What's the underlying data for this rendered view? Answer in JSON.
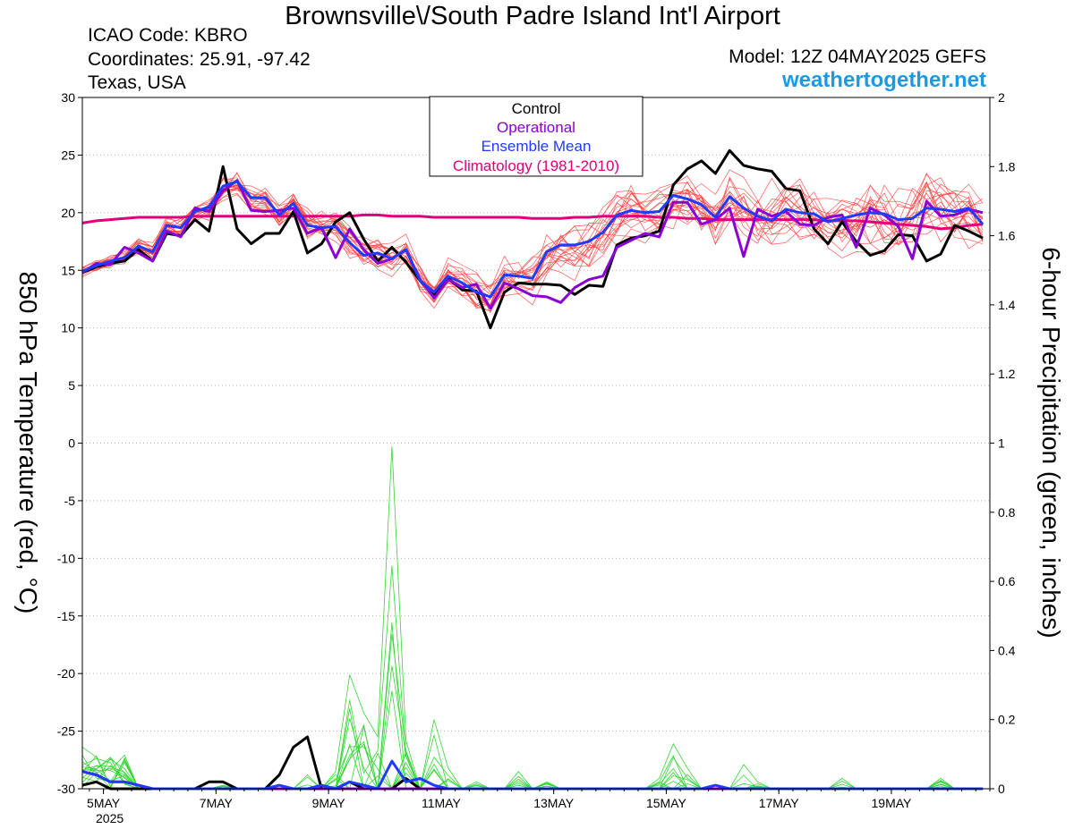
{
  "header": {
    "title": "Brownsville\\/South Padre Island Int'l Airport",
    "icao": "ICAO Code: KBRO",
    "coordinates": "Coordinates: 25.91, -97.42",
    "region": "Texas, USA",
    "model": "Model: 12Z 04MAY2025 GEFS",
    "website": "weathertogether.net"
  },
  "chart_data": {
    "type": "line",
    "xlabel": "",
    "ylabel": "850 hPa Temperature (red, °C)",
    "y2label": "6-hour Precipitation (green, inches)",
    "x_ticks": [
      "5MAY",
      "7MAY",
      "9MAY",
      "11MAY",
      "13MAY",
      "15MAY",
      "17MAY",
      "19MAY"
    ],
    "x_tick_year": "2025",
    "x_ticks_day": [
      5,
      7,
      9,
      11,
      13,
      15,
      17,
      19
    ],
    "xlim_day": [
      4.625,
      20.75
    ],
    "x_step_days": 0.25,
    "ylim": [
      -30,
      30
    ],
    "y_ticks": [
      -30,
      -25,
      -20,
      -15,
      -10,
      -5,
      0,
      5,
      10,
      15,
      20,
      25,
      30
    ],
    "y2lim": [
      0,
      2
    ],
    "y2_ticks": [
      "0",
      "0.2",
      "0.4",
      "0.6",
      "0.8",
      "1",
      "1.2",
      "1.4",
      "1.6",
      "1.8",
      "2"
    ],
    "grid": "dotted",
    "legend": {
      "position": "top-center",
      "entries": [
        {
          "label": "Control",
          "color": "#000000"
        },
        {
          "label": "Operational",
          "color": "#8a00d4"
        },
        {
          "label": "Ensemble Mean",
          "color": "#1f3bff"
        },
        {
          "label": "Climatology (1981-2010)",
          "color": "#e0007a"
        }
      ]
    },
    "colors": {
      "members": "#ff3b3b",
      "precip_members": "#35d535",
      "control": "#000000",
      "operational": "#8a00d4",
      "mean": "#1f3bff",
      "climatology": "#e0007a",
      "website": "#1a9ae6"
    },
    "series": [
      {
        "name": "Control",
        "axis": "left",
        "color": "#000000",
        "width": 3,
        "values": [
          14.8,
          15.3,
          15.6,
          15.8,
          16.8,
          15.8,
          18.2,
          18.0,
          19.4,
          18.4,
          24.0,
          18.6,
          17.3,
          18.2,
          18.2,
          20.1,
          16.5,
          17.3,
          19.2,
          20.0,
          17.7,
          15.8,
          17.0,
          15.7,
          14.1,
          12.8,
          14.3,
          13.3,
          13.2,
          10.0,
          13.1,
          13.9,
          13.8,
          13.8,
          13.7,
          12.9,
          13.7,
          13.6,
          17.2,
          17.8,
          18.0,
          18.4,
          22.4,
          23.8,
          24.5,
          23.4,
          25.4,
          24.1,
          23.8,
          23.6,
          22.1,
          21.9,
          18.6,
          17.3,
          19.2,
          17.5,
          16.3,
          16.7,
          18.1,
          18.0,
          15.8,
          16.4,
          18.9,
          18.4,
          17.8
        ]
      },
      {
        "name": "Operational",
        "axis": "left",
        "color": "#8a00d4",
        "width": 3,
        "values": [
          14.8,
          15.6,
          15.5,
          17.0,
          16.5,
          15.8,
          18.4,
          17.9,
          20.4,
          20.1,
          21.9,
          22.8,
          20.2,
          20.1,
          20.2,
          20.4,
          18.2,
          18.7,
          16.1,
          18.6,
          16.8,
          15.6,
          16.0,
          16.8,
          14.2,
          12.6,
          14.2,
          13.5,
          13.8,
          11.7,
          13.9,
          13.4,
          12.8,
          12.7,
          12.2,
          13.5,
          14.2,
          14.5,
          17.0,
          17.6,
          18.2,
          17.9,
          20.9,
          20.9,
          19.0,
          19.4,
          20.4,
          16.2,
          20.3,
          19.7,
          20.1,
          19.0,
          18.9,
          19.6,
          19.8,
          17.0,
          20.4,
          19.8,
          18.8,
          16.0,
          21.0,
          19.7,
          19.8,
          20.3,
          20.0
        ]
      },
      {
        "name": "Ensemble Mean",
        "axis": "left",
        "color": "#1f3bff",
        "width": 3,
        "values": [
          14.9,
          15.4,
          15.8,
          16.1,
          17.1,
          16.6,
          18.9,
          18.7,
          20.1,
          20.5,
          22.3,
          22.7,
          21.3,
          21.3,
          19.8,
          20.8,
          18.9,
          18.7,
          18.8,
          17.4,
          16.3,
          16.5,
          16.0,
          16.8,
          14.1,
          13.1,
          14.5,
          13.9,
          13.1,
          12.7,
          14.6,
          14.5,
          14.3,
          16.6,
          17.2,
          17.2,
          17.5,
          18.3,
          19.8,
          20.2,
          20.0,
          20.1,
          21.5,
          21.2,
          20.7,
          19.6,
          21.4,
          20.4,
          19.7,
          19.3,
          20.3,
          20.0,
          19.9,
          19.2,
          19.5,
          19.8,
          20.0,
          19.9,
          19.4,
          19.5,
          20.4,
          20.3,
          20.1,
          20.4,
          19.0
        ]
      },
      {
        "name": "Climatology (1981-2010)",
        "axis": "left",
        "color": "#e0007a",
        "width": 3,
        "values": [
          19.1,
          19.3,
          19.4,
          19.5,
          19.6,
          19.6,
          19.6,
          19.6,
          19.7,
          19.7,
          19.7,
          19.7,
          19.7,
          19.7,
          19.7,
          19.7,
          19.7,
          19.7,
          19.7,
          19.7,
          19.8,
          19.8,
          19.7,
          19.7,
          19.7,
          19.6,
          19.6,
          19.6,
          19.6,
          19.6,
          19.6,
          19.6,
          19.5,
          19.5,
          19.5,
          19.6,
          19.6,
          19.7,
          19.7,
          19.7,
          19.7,
          19.6,
          19.6,
          19.5,
          19.5,
          19.4,
          19.4,
          19.4,
          19.4,
          19.4,
          19.4,
          19.4,
          19.4,
          19.3,
          19.3,
          19.3,
          19.2,
          19.1,
          19.0,
          18.9,
          18.8,
          18.6,
          18.7,
          18.9,
          19.0
        ]
      },
      {
        "name": "Control",
        "axis": "right",
        "color": "#000000",
        "width": 3,
        "values": [
          0.01,
          0.02,
          0.0,
          0.0,
          0.0,
          0.0,
          0.0,
          0.0,
          0.0,
          0.02,
          0.02,
          0.0,
          0.0,
          0.0,
          0.04,
          0.12,
          0.15,
          0.0,
          0.0,
          0.02,
          0.0,
          0.0,
          0.0,
          0.03,
          0.0,
          0.0,
          0.0,
          0.0,
          0.0,
          0.0,
          0.0,
          0.0,
          0.0,
          0.0,
          0.0,
          0.0,
          0.0,
          0.0,
          0.0,
          0.0,
          0.0,
          0.0,
          0.0,
          0.0,
          0.0,
          0.0,
          0.0,
          0.0,
          0.0,
          0.0,
          0.0,
          0.0,
          0.0,
          0.0,
          0.0,
          0.0,
          0.0,
          0.0,
          0.0,
          0.0,
          0.0,
          0.0,
          0.0,
          0.0,
          0.0
        ]
      },
      {
        "name": "Operational",
        "axis": "right",
        "color": "#8a00d4",
        "width": 3,
        "values": [
          0.05,
          0.04,
          0.02,
          0.02,
          0.01,
          0.0,
          0.0,
          0.0,
          0.0,
          0.0,
          0.0,
          0.0,
          0.0,
          0.0,
          0.0,
          0.0,
          0.0,
          0.0,
          0.0,
          0.0,
          0.0,
          0.0,
          0.0,
          0.0,
          0.0,
          0.0,
          0.0,
          0.0,
          0.0,
          0.0,
          0.0,
          0.0,
          0.0,
          0.0,
          0.0,
          0.0,
          0.0,
          0.0,
          0.0,
          0.0,
          0.0,
          0.0,
          0.0,
          0.0,
          0.0,
          0.0,
          0.0,
          0.0,
          0.0,
          0.0,
          0.0,
          0.0,
          0.0,
          0.0,
          0.0,
          0.0,
          0.0,
          0.0,
          0.0,
          0.0,
          0.0,
          0.0,
          0.0,
          0.0,
          0.0
        ]
      },
      {
        "name": "Ensemble Mean",
        "axis": "right",
        "color": "#1f3bff",
        "width": 3,
        "values": [
          0.05,
          0.04,
          0.02,
          0.02,
          0.01,
          0.0,
          0.0,
          0.0,
          0.0,
          0.0,
          0.0,
          0.0,
          0.0,
          0.0,
          0.01,
          0.0,
          0.0,
          0.01,
          0.0,
          0.02,
          0.01,
          0.0,
          0.08,
          0.02,
          0.03,
          0.01,
          0.0,
          0.0,
          0.0,
          0.0,
          0.0,
          0.0,
          0.0,
          0.0,
          0.0,
          0.0,
          0.0,
          0.0,
          0.0,
          0.0,
          0.0,
          0.0,
          0.0,
          0.0,
          0.0,
          0.01,
          0.0,
          0.0,
          0.0,
          0.0,
          0.0,
          0.0,
          0.0,
          0.0,
          0.0,
          0.0,
          0.0,
          0.0,
          0.0,
          0.0,
          0.0,
          0.0,
          0.0,
          0.0,
          0.0
        ]
      }
    ],
    "member_envelope_note": "ensemble members"
  }
}
